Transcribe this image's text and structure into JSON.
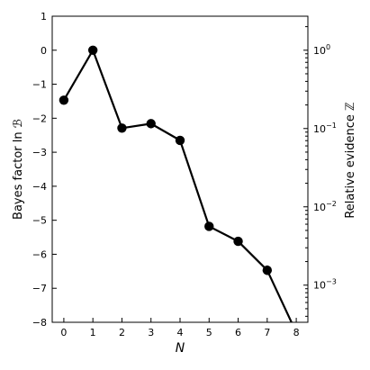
{
  "chart_data": {
    "type": "line",
    "x": [
      0,
      1,
      2,
      3,
      4,
      5,
      6,
      7,
      8
    ],
    "series": [
      {
        "values": [
          -1.47,
          0.0,
          -2.29,
          -2.16,
          -2.65,
          -5.18,
          -5.62,
          -6.47,
          -8.3
        ],
        "errors": [
          0.12,
          0.12,
          0.12,
          0.12,
          0.12,
          0.12,
          0.12,
          0.14,
          0.2
        ],
        "color": "#000000"
      }
    ],
    "xlabel": "N",
    "ylabel": "Bayes factor ln ℬ",
    "ylabel_right": "Relative evidence ℤ",
    "xlim": [
      -0.4,
      8.4
    ],
    "ylim": [
      -8,
      1
    ],
    "xticks": [
      "0",
      "1",
      "2",
      "3",
      "4",
      "5",
      "6",
      "7",
      "8"
    ],
    "yticks": [
      "1",
      "0",
      "−1",
      "−2",
      "−3",
      "−4",
      "−5",
      "−6",
      "−7",
      "−8"
    ],
    "yticks_right": [
      {
        "base": "10",
        "exp": "0"
      },
      {
        "base": "10",
        "exp": "−1"
      },
      {
        "base": "10",
        "exp": "−2"
      },
      {
        "base": "10",
        "exp": "−3"
      }
    ],
    "grid": false,
    "right_axis_scale": "log"
  }
}
